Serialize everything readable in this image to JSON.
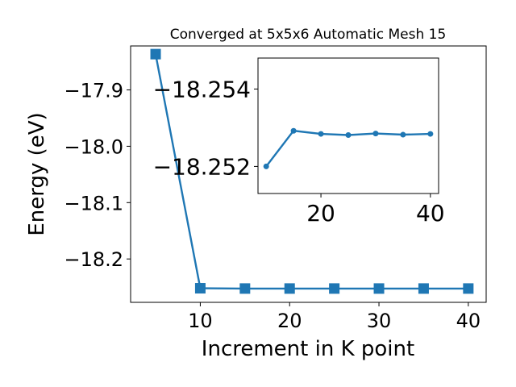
{
  "chart_data": [
    {
      "type": "line",
      "title": "Converged at 5x5x6 Automatic Mesh 15",
      "xlabel": "Increment in K point",
      "ylabel": "Energy (eV)",
      "xlim": [
        2.2,
        42.0
      ],
      "ylim": [
        -18.277,
        -17.822
      ],
      "xticks": [
        10,
        20,
        30,
        40
      ],
      "xtick_labels": [
        "10",
        "20",
        "30",
        "40"
      ],
      "yticks": [
        -17.9,
        -18.0,
        -18.1,
        -18.2
      ],
      "ytick_labels": [
        "−17.9",
        "−18.0",
        "−18.1",
        "−18.2"
      ],
      "grid": false,
      "marker": "square",
      "color": "#1f77b4",
      "series": [
        {
          "x": [
            5,
            10,
            15,
            20,
            25,
            30,
            35,
            40
          ],
          "y": [
            -17.8365,
            -18.252,
            -18.2525,
            -18.2525,
            -18.2525,
            -18.2525,
            -18.2525,
            -18.2525
          ]
        }
      ]
    },
    {
      "type": "line",
      "title": "",
      "xlabel": "",
      "ylabel": "",
      "xlim": [
        8.5,
        41.5
      ],
      "ylim": [
        -18.2513,
        -18.2548
      ],
      "xticks": [
        20,
        40
      ],
      "xtick_labels": [
        "20",
        "40"
      ],
      "yticks": [
        -18.254,
        -18.252
      ],
      "ytick_labels": [
        "−18.254",
        "−18.252"
      ],
      "grid": false,
      "marker": "circle",
      "color": "#1f77b4",
      "series": [
        {
          "x": [
            10,
            15,
            20,
            25,
            30,
            35,
            40
          ],
          "y": [
            -18.252,
            -18.25292,
            -18.25284,
            -18.25281,
            -18.25285,
            -18.25282,
            -18.25284
          ]
        }
      ]
    }
  ]
}
